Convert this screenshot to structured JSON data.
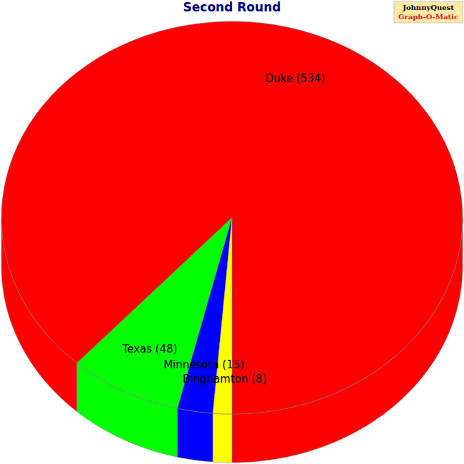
{
  "chart_data": {
    "type": "pie",
    "title": "Second Round",
    "categories": [
      "Duke",
      "Texas",
      "Minnesota",
      "Binghamton"
    ],
    "values": [
      534,
      48,
      15,
      8
    ],
    "value_labels": [
      "Duke (534)",
      "Texas (48)",
      "Minnesota (15)",
      "Binghamton (8)"
    ],
    "colors": [
      "#ff0000",
      "#00ff00",
      "#0000ff",
      "#ffff00"
    ],
    "data_labels": true,
    "annotations": [
      "JohnnyQuest",
      "Graph-O-Matic"
    ]
  }
}
